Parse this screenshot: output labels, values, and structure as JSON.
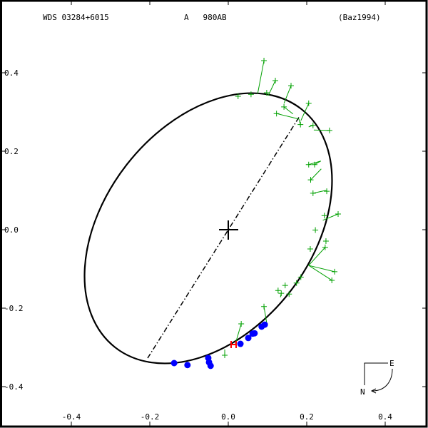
{
  "header": {
    "left": "WDS 03284+6015",
    "center": "A   980AB",
    "right": "(Baz1994)"
  },
  "axes": {
    "x_ticks": [
      "-0.4",
      "-0.2",
      "0.0",
      "0.2",
      "0.4"
    ],
    "y_ticks": [
      "0.4",
      "0.2",
      "0.0",
      "-0.2",
      "-0.4"
    ]
  },
  "compass": {
    "east": "E",
    "north": "N"
  },
  "colors": {
    "orbit": "#000000",
    "residual": "#00a000",
    "speckle": "#0000ff",
    "marker": "#ff0000"
  },
  "chart_data": {
    "type": "scatter",
    "title": "WDS 03284+6015  A 980AB  (Baz1994)",
    "xlabel": "",
    "ylabel": "",
    "xlim": [
      -0.58,
      0.5
    ],
    "ylim": [
      -0.5,
      0.58
    ],
    "grid": false,
    "x_ticks": [
      -0.4,
      -0.2,
      0.0,
      0.2,
      0.4
    ],
    "y_ticks": [
      -0.4,
      -0.2,
      0.0,
      0.2,
      0.4
    ],
    "primary_star": [
      0.0,
      0.0
    ],
    "line_of_nodes": [
      [
        -0.205,
        -0.327
      ],
      [
        0.182,
        0.289
      ]
    ],
    "orbit_extent": {
      "xmin": -0.351,
      "xmax": 0.251,
      "ymin": -0.344,
      "ymax": 0.347
    },
    "series": [
      {
        "name": "visual observations (green +) with residual lines",
        "points": [
          {
            "obs": [
              0.091,
              0.431
            ],
            "fit": [
              0.075,
              0.347
            ]
          },
          {
            "obs": [
              0.12,
              0.38
            ],
            "fit": [
              0.102,
              0.342
            ]
          },
          {
            "obs": [
              0.16,
              0.367
            ],
            "fit": [
              0.142,
              0.322
            ]
          },
          {
            "obs": [
              0.025,
              0.34
            ],
            "fit": [
              0.025,
              0.34
            ]
          },
          {
            "obs": [
              0.058,
              0.345
            ],
            "fit": [
              0.058,
              0.345
            ]
          },
          {
            "obs": [
              0.098,
              0.349
            ],
            "fit": [
              0.098,
              0.345
            ]
          },
          {
            "obs": [
              0.142,
              0.313
            ],
            "fit": [
              0.165,
              0.295
            ]
          },
          {
            "obs": [
              0.123,
              0.296
            ],
            "fit": [
              0.18,
              0.282
            ]
          },
          {
            "obs": [
              0.205,
              0.322
            ],
            "fit": [
              0.185,
              0.278
            ]
          },
          {
            "obs": [
              0.184,
              0.268
            ],
            "fit": [
              0.18,
              0.282
            ]
          },
          {
            "obs": [
              0.216,
              0.266
            ],
            "fit": [
              0.205,
              0.262
            ]
          },
          {
            "obs": [
              0.258,
              0.253
            ],
            "fit": [
              0.218,
              0.254
            ]
          },
          {
            "obs": [
              0.205,
              0.166
            ],
            "fit": [
              0.236,
              0.175
            ]
          },
          {
            "obs": [
              0.22,
              0.166
            ],
            "fit": [
              0.236,
              0.175
            ]
          },
          {
            "obs": [
              0.21,
              0.127
            ],
            "fit": [
              0.237,
              0.155
            ]
          },
          {
            "obs": [
              0.216,
              0.093
            ],
            "fit": [
              0.248,
              0.1
            ]
          },
          {
            "obs": [
              0.251,
              0.098
            ],
            "fit": [
              0.248,
              0.1
            ]
          },
          {
            "obs": [
              0.245,
              0.036
            ],
            "fit": [
              0.245,
              0.036
            ]
          },
          {
            "obs": [
              0.28,
              0.04
            ],
            "fit": [
              0.241,
              0.024
            ]
          },
          {
            "obs": [
              0.222,
              -0.001
            ],
            "fit": [
              0.222,
              -0.001
            ]
          },
          {
            "obs": [
              0.249,
              -0.029
            ],
            "fit": [
              0.249,
              -0.029
            ]
          },
          {
            "obs": [
              0.247,
              -0.045
            ],
            "fit": [
              0.205,
              -0.091
            ]
          },
          {
            "obs": [
              0.209,
              -0.049
            ],
            "fit": [
              0.209,
              -0.049
            ]
          },
          {
            "obs": [
              0.271,
              -0.107
            ],
            "fit": [
              0.205,
              -0.091
            ]
          },
          {
            "obs": [
              0.264,
              -0.129
            ],
            "fit": [
              0.205,
              -0.091
            ]
          },
          {
            "obs": [
              0.185,
              -0.121
            ],
            "fit": [
              0.185,
              -0.121
            ]
          },
          {
            "obs": [
              0.174,
              -0.136
            ],
            "fit": [
              0.174,
              -0.136
            ]
          },
          {
            "obs": [
              0.145,
              -0.142
            ],
            "fit": [
              0.145,
              -0.142
            ]
          },
          {
            "obs": [
              0.127,
              -0.155
            ],
            "fit": [
              0.127,
              -0.155
            ]
          },
          {
            "obs": [
              0.135,
              -0.162
            ],
            "fit": [
              0.133,
              -0.172
            ]
          },
          {
            "obs": [
              0.155,
              -0.164
            ],
            "fit": [
              0.155,
              -0.164
            ]
          },
          {
            "obs": [
              0.091,
              -0.196
            ],
            "fit": [
              0.098,
              -0.238
            ]
          },
          {
            "obs": [
              0.033,
              -0.24
            ],
            "fit": [
              0.018,
              -0.291
            ]
          },
          {
            "obs": [
              -0.009,
              -0.32
            ],
            "fit": [
              -0.009,
              -0.305
            ]
          }
        ]
      },
      {
        "name": "speckle observations (blue dots)",
        "points": [
          [
            -0.138,
            -0.34
          ],
          [
            -0.104,
            -0.345
          ],
          [
            -0.051,
            -0.327
          ],
          [
            -0.049,
            -0.338
          ],
          [
            -0.045,
            -0.347
          ],
          [
            0.031,
            -0.291
          ],
          [
            0.051,
            -0.276
          ],
          [
            0.062,
            -0.265
          ],
          [
            0.067,
            -0.264
          ],
          [
            0.085,
            -0.247
          ],
          [
            0.093,
            -0.242
          ]
        ]
      },
      {
        "name": "marker (red H)",
        "points": [
          [
            0.015,
            -0.291
          ]
        ]
      }
    ]
  }
}
